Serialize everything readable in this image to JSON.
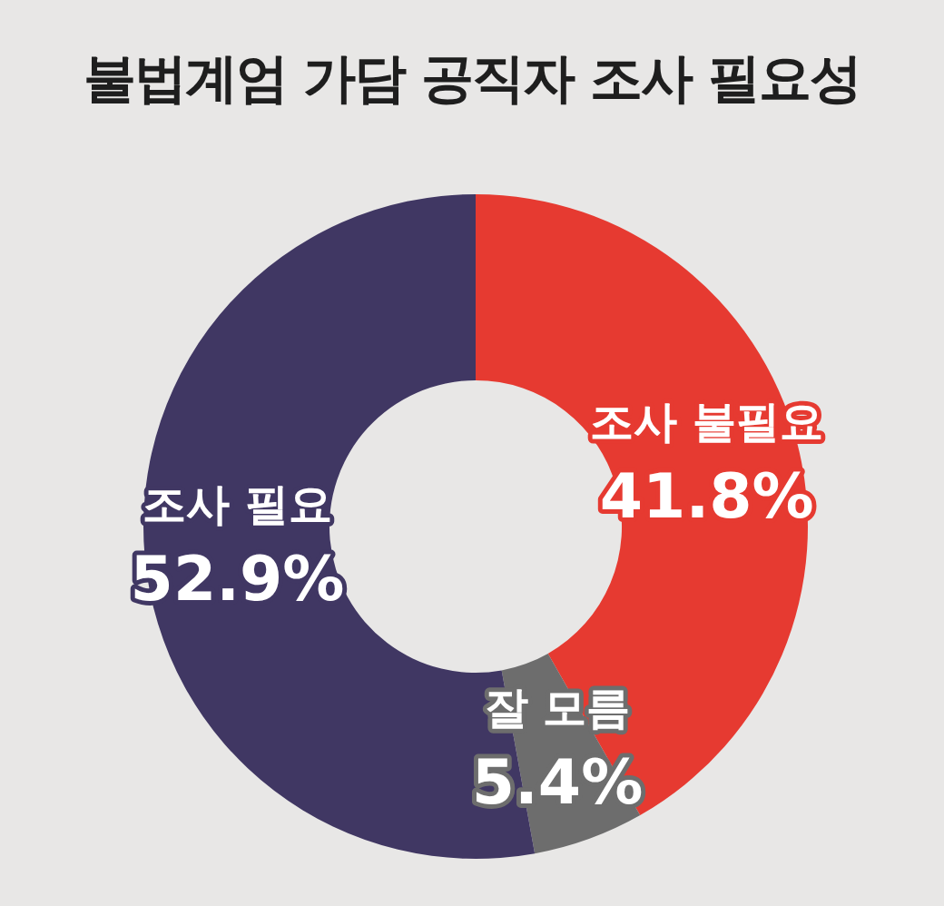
{
  "chart_data": {
    "type": "donut",
    "title": "불법계엄 가담 공직자 조사 필요성",
    "categories": [
      "조사 불필요",
      "잘 모름",
      "조사 필요"
    ],
    "values": [
      41.8,
      5.4,
      52.9
    ],
    "colors": [
      "#e63a31",
      "#6d6d6d",
      "#403763"
    ],
    "value_labels": [
      "41.8%",
      "5.4%",
      "52.9%"
    ],
    "legend": false
  }
}
